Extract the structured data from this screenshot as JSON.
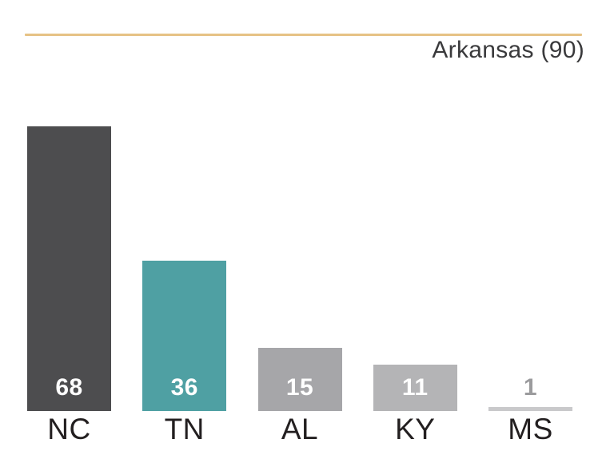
{
  "header": {
    "title": "Arkansas (90)"
  },
  "chart_data": {
    "type": "bar",
    "title": "Arkansas (90)",
    "categories": [
      "NC",
      "TN",
      "AL",
      "KY",
      "MS"
    ],
    "values": [
      68,
      36,
      15,
      11,
      1
    ],
    "bar_colors": [
      "#4D4D4F",
      "#4FA0A3",
      "#A6A6A9",
      "#B4B4B6",
      "#C9C9CB"
    ],
    "value_label_colors": [
      "#FFFFFF",
      "#FFFFFF",
      "#FFFFFF",
      "#FFFFFF",
      "#9B9B9D"
    ],
    "category_label_color": "#231F20",
    "accent_rule_color": "#E6C285",
    "title_color": "#3A3A3C",
    "xlabel": "",
    "ylabel": "",
    "ylim": [
      0,
      69.5
    ],
    "grid": false,
    "legend": false,
    "value_labels_inside_bars": true,
    "orientation": "vertical"
  }
}
